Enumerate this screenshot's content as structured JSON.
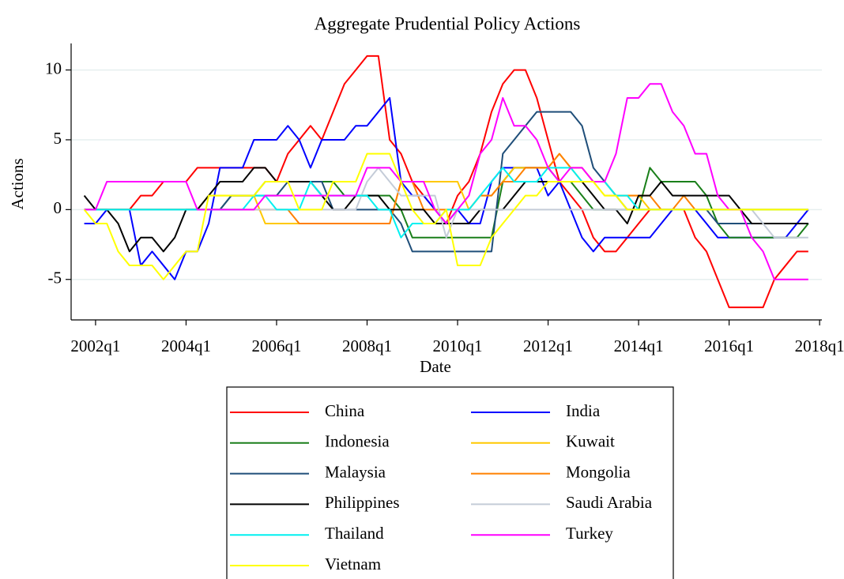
{
  "chart_data": {
    "type": "line",
    "title": "Aggregate Prudential Policy Actions",
    "x_label": "Date",
    "y_label": "Actions",
    "x": [
      2001.75,
      2002,
      2002.25,
      2002.5,
      2002.75,
      2003,
      2003.25,
      2003.5,
      2003.75,
      2004,
      2004.25,
      2004.5,
      2004.75,
      2005,
      2005.25,
      2005.5,
      2005.75,
      2006,
      2006.25,
      2006.5,
      2006.75,
      2007,
      2007.25,
      2007.5,
      2007.75,
      2008,
      2008.25,
      2008.5,
      2008.75,
      2009,
      2009.25,
      2009.5,
      2009.75,
      2010,
      2010.25,
      2010.5,
      2010.75,
      2011,
      2011.25,
      2011.5,
      2011.75,
      2012,
      2012.25,
      2012.5,
      2012.75,
      2013,
      2013.25,
      2013.5,
      2013.75,
      2014,
      2014.25,
      2014.5,
      2014.75,
      2015,
      2015.25,
      2015.5,
      2015.75,
      2016,
      2016.25,
      2016.5,
      2016.75,
      2017,
      2017.25,
      2017.5,
      2017.75
    ],
    "xlim": [
      2001.46,
      2018.05
    ],
    "xticks": [
      {
        "value": 2002,
        "label": "2002q1"
      },
      {
        "value": 2004,
        "label": "2004q1"
      },
      {
        "value": 2006,
        "label": "2006q1"
      },
      {
        "value": 2008,
        "label": "2008q1"
      },
      {
        "value": 2010,
        "label": "2010q1"
      },
      {
        "value": 2012,
        "label": "2012q1"
      },
      {
        "value": 2014,
        "label": "2014q1"
      },
      {
        "value": 2016,
        "label": "2016q1"
      },
      {
        "value": 2018,
        "label": "2018q1"
      }
    ],
    "ylim": [
      -7.9,
      11.9
    ],
    "yticks": [
      -5,
      0,
      5,
      10
    ],
    "grid": true,
    "legend_position": "bottom",
    "legend_columns": 2,
    "series": [
      {
        "name": "China",
        "color": "#ff0000",
        "values": [
          0,
          0,
          0,
          0,
          0,
          1,
          1,
          2,
          2,
          2,
          3,
          3,
          3,
          3,
          3,
          3,
          3,
          2,
          4,
          5,
          6,
          5,
          7,
          9,
          10,
          11,
          11,
          5,
          4,
          2,
          1,
          0,
          -1,
          1,
          2,
          4,
          7,
          9,
          10,
          10,
          8,
          5,
          2,
          1,
          0,
          -2,
          -3,
          -3,
          -2,
          -1,
          0,
          0,
          0,
          0,
          -2,
          -3,
          -5,
          -7,
          -7,
          -7,
          -7,
          -5,
          -4,
          -3,
          -3
        ]
      },
      {
        "name": "India",
        "color": "#0000ff",
        "values": [
          -1,
          -1,
          0,
          0,
          0,
          -4,
          -3,
          -4,
          -5,
          -3,
          -3,
          -1,
          3,
          3,
          3,
          5,
          5,
          5,
          6,
          5,
          3,
          5,
          5,
          5,
          6,
          6,
          7,
          8,
          2,
          1,
          1,
          0,
          -1,
          0,
          -1,
          -1,
          2,
          3,
          3,
          3,
          3,
          1,
          2,
          0,
          -2,
          -3,
          -2,
          -2,
          -2,
          -2,
          -2,
          -1,
          0,
          0,
          0,
          -1,
          -2,
          -2,
          -2,
          -2,
          -2,
          -2,
          -2,
          -1,
          0
        ]
      },
      {
        "name": "Indonesia",
        "color": "#1a7f1a",
        "values": [
          0,
          0,
          0,
          0,
          0,
          0,
          0,
          0,
          0,
          0,
          0,
          0,
          0,
          1,
          1,
          1,
          2,
          2,
          2,
          2,
          2,
          2,
          2,
          1,
          1,
          1,
          1,
          1,
          0,
          -2,
          -2,
          -2,
          -2,
          -2,
          -2,
          -2,
          -2,
          2,
          3,
          3,
          3,
          3,
          2,
          2,
          1,
          0,
          0,
          0,
          0,
          0,
          3,
          2,
          2,
          2,
          2,
          1,
          -1,
          -2,
          -2,
          -2,
          -2,
          -2,
          -2,
          -2,
          -1
        ]
      },
      {
        "name": "Kuwait",
        "color": "#ffc800",
        "values": [
          0,
          0,
          0,
          0,
          0,
          0,
          0,
          0,
          0,
          0,
          0,
          1,
          1,
          1,
          1,
          1,
          -1,
          -1,
          -1,
          -1,
          -1,
          -1,
          -1,
          -1,
          -1,
          -1,
          -1,
          -1,
          2,
          2,
          2,
          2,
          2,
          2,
          0,
          1,
          1,
          2,
          3,
          3,
          3,
          3,
          4,
          3,
          2,
          2,
          1,
          1,
          1,
          1,
          0,
          0,
          0,
          0,
          0,
          0,
          0,
          0,
          0,
          0,
          0,
          0,
          0,
          0,
          0
        ]
      },
      {
        "name": "Malaysia",
        "color": "#1f4e79",
        "values": [
          0,
          0,
          0,
          0,
          0,
          0,
          0,
          0,
          0,
          0,
          0,
          0,
          0,
          1,
          1,
          1,
          1,
          1,
          2,
          2,
          2,
          2,
          0,
          0,
          0,
          0,
          0,
          0,
          -1,
          -3,
          -3,
          -3,
          -3,
          -3,
          -3,
          -3,
          -3,
          4,
          5,
          6,
          7,
          7,
          7,
          7,
          6,
          3,
          2,
          1,
          0,
          0,
          0,
          0,
          0,
          0,
          0,
          0,
          -1,
          -1,
          -1,
          -1,
          -1,
          -1,
          -1,
          -1,
          -1
        ]
      },
      {
        "name": "Mongolia",
        "color": "#ff8000",
        "values": [
          0,
          0,
          0,
          0,
          0,
          0,
          0,
          0,
          0,
          0,
          0,
          0,
          0,
          0,
          0,
          0,
          0,
          0,
          0,
          -1,
          -1,
          -1,
          -1,
          -1,
          -1,
          -1,
          -1,
          -1,
          2,
          2,
          0,
          0,
          0,
          0,
          0,
          1,
          1,
          2,
          2,
          3,
          3,
          3,
          4,
          3,
          3,
          2,
          2,
          1,
          1,
          1,
          1,
          0,
          0,
          1,
          0,
          0,
          0,
          0,
          0,
          0,
          0,
          0,
          0,
          0,
          0
        ]
      },
      {
        "name": "Philippines",
        "color": "#000000",
        "values": [
          1,
          0,
          0,
          -1,
          -3,
          -2,
          -2,
          -3,
          -2,
          0,
          0,
          1,
          2,
          2,
          2,
          3,
          3,
          2,
          2,
          2,
          2,
          1,
          0,
          0,
          1,
          1,
          1,
          0,
          0,
          0,
          0,
          -1,
          -1,
          -1,
          -1,
          0,
          0,
          0,
          1,
          2,
          2,
          2,
          2,
          2,
          2,
          1,
          0,
          0,
          -1,
          1,
          1,
          2,
          1,
          1,
          1,
          1,
          1,
          1,
          0,
          -1,
          -1,
          -1,
          -1,
          -1,
          -1
        ]
      },
      {
        "name": "Saudi Arabia",
        "color": "#c4ccd8",
        "values": [
          0,
          0,
          0,
          0,
          0,
          0,
          0,
          0,
          0,
          0,
          0,
          0,
          0,
          0,
          0,
          0,
          0,
          0,
          0,
          0,
          0,
          0,
          0,
          0,
          0,
          2,
          3,
          2,
          1,
          1,
          1,
          1,
          -2,
          0,
          0,
          0,
          0,
          0,
          0,
          0,
          0,
          0,
          0,
          0,
          0,
          0,
          0,
          0,
          0,
          0,
          0,
          0,
          0,
          0,
          0,
          0,
          0,
          0,
          0,
          0,
          -1,
          -2,
          -2,
          -2,
          -2
        ]
      },
      {
        "name": "Thailand",
        "color": "#00f0f0",
        "values": [
          0,
          0,
          0,
          0,
          0,
          0,
          0,
          0,
          0,
          0,
          0,
          0,
          0,
          0,
          0,
          1,
          1,
          0,
          0,
          0,
          2,
          1,
          1,
          1,
          1,
          1,
          0,
          0,
          -2,
          -1,
          -1,
          -1,
          0,
          0,
          0,
          1,
          2,
          3,
          2,
          2,
          2,
          3,
          3,
          3,
          2,
          2,
          2,
          1,
          1,
          0,
          0,
          0,
          0,
          0,
          0,
          0,
          0,
          0,
          0,
          0,
          0,
          0,
          0,
          0,
          0
        ]
      },
      {
        "name": "Turkey",
        "color": "#ff00ff",
        "values": [
          0,
          0,
          2,
          2,
          2,
          2,
          2,
          2,
          2,
          2,
          0,
          0,
          0,
          0,
          0,
          0,
          1,
          1,
          1,
          1,
          1,
          1,
          1,
          1,
          1,
          3,
          3,
          3,
          2,
          2,
          2,
          0,
          -1,
          0,
          1,
          4,
          5,
          8,
          6,
          6,
          5,
          3,
          2,
          3,
          3,
          2,
          2,
          4,
          8,
          8,
          9,
          9,
          7,
          6,
          4,
          4,
          1,
          0,
          0,
          -2,
          -3,
          -5,
          -5,
          -5,
          -5
        ]
      },
      {
        "name": "Vietnam",
        "color": "#ffff00",
        "values": [
          0,
          -1,
          -1,
          -3,
          -4,
          -4,
          -4,
          -5,
          -4,
          -3,
          -3,
          1,
          1,
          1,
          1,
          1,
          2,
          2,
          2,
          0,
          0,
          0,
          2,
          2,
          2,
          4,
          4,
          4,
          2,
          0,
          -1,
          -1,
          0,
          -4,
          -4,
          -4,
          -2,
          -1,
          0,
          1,
          1,
          2,
          2,
          2,
          2,
          2,
          1,
          1,
          0,
          0,
          0,
          0,
          0,
          0,
          0,
          0,
          0,
          0,
          0,
          0,
          0,
          0,
          0,
          0,
          0
        ]
      }
    ]
  }
}
